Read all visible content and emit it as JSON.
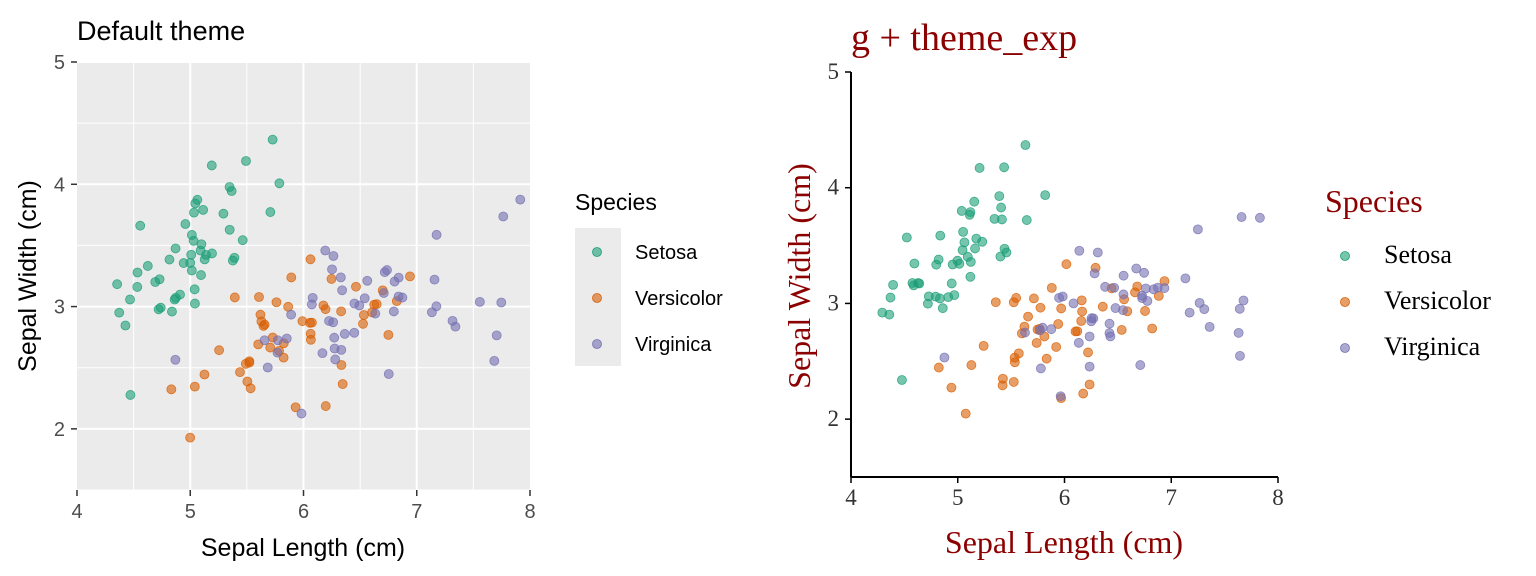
{
  "chart_data": [
    {
      "type": "scatter",
      "title": "Default theme",
      "xlabel": "Sepal Length (cm)",
      "ylabel": "Sepal Width (cm)",
      "xlim": [
        4,
        8
      ],
      "ylim": [
        1.5,
        5
      ],
      "xticks": [
        4,
        5,
        6,
        7,
        8
      ],
      "yticks": [
        2,
        3,
        4,
        5
      ],
      "grid": true,
      "legend_position": "right",
      "legend_title": "Species",
      "background": "#EBEBEB"
    },
    {
      "type": "scatter",
      "title": "g + theme_exp",
      "xlabel": "Sepal Length (cm)",
      "ylabel": "Sepal Width (cm)",
      "xlim": [
        4,
        8
      ],
      "ylim": [
        1.5,
        5
      ],
      "xticks": [
        4,
        5,
        6,
        7,
        8
      ],
      "yticks": [
        2,
        3,
        4,
        5
      ],
      "grid": false,
      "legend_position": "right",
      "legend_title": "Species",
      "text_color": "#8B0000"
    }
  ],
  "series": [
    {
      "name": "Setosa",
      "color": "#1B9E77",
      "points": [
        [
          5.1,
          3.5
        ],
        [
          4.9,
          3.0
        ],
        [
          4.7,
          3.2
        ],
        [
          4.6,
          3.1
        ],
        [
          5.0,
          3.6
        ],
        [
          5.4,
          3.9
        ],
        [
          4.6,
          3.4
        ],
        [
          5.0,
          3.4
        ],
        [
          4.4,
          2.9
        ],
        [
          4.9,
          3.1
        ],
        [
          5.4,
          3.7
        ],
        [
          4.8,
          3.4
        ],
        [
          4.8,
          3.0
        ],
        [
          4.3,
          3.0
        ],
        [
          5.8,
          4.0
        ],
        [
          5.7,
          4.4
        ],
        [
          5.4,
          3.9
        ],
        [
          5.1,
          3.5
        ],
        [
          5.7,
          3.8
        ],
        [
          5.1,
          3.8
        ],
        [
          5.4,
          3.4
        ],
        [
          5.1,
          3.7
        ],
        [
          4.6,
          3.6
        ],
        [
          5.1,
          3.3
        ],
        [
          4.8,
          3.4
        ],
        [
          5.0,
          3.0
        ],
        [
          5.0,
          3.4
        ],
        [
          5.2,
          3.5
        ],
        [
          5.2,
          3.4
        ],
        [
          4.7,
          3.2
        ],
        [
          4.8,
          3.1
        ],
        [
          5.4,
          3.4
        ],
        [
          5.2,
          4.1
        ],
        [
          5.5,
          4.2
        ],
        [
          4.9,
          3.1
        ],
        [
          5.0,
          3.2
        ],
        [
          5.5,
          3.5
        ],
        [
          4.9,
          3.6
        ],
        [
          4.4,
          3.0
        ],
        [
          5.1,
          3.4
        ],
        [
          5.0,
          3.5
        ],
        [
          4.5,
          2.3
        ],
        [
          4.4,
          3.2
        ],
        [
          5.0,
          3.5
        ],
        [
          5.1,
          3.8
        ],
        [
          4.8,
          3.0
        ],
        [
          5.1,
          3.8
        ],
        [
          4.6,
          3.2
        ],
        [
          5.3,
          3.7
        ],
        [
          5.0,
          3.3
        ]
      ]
    },
    {
      "name": "Versicolor",
      "color": "#D95F02",
      "points": [
        [
          7.0,
          3.2
        ],
        [
          6.4,
          3.2
        ],
        [
          6.9,
          3.1
        ],
        [
          5.5,
          2.3
        ],
        [
          6.5,
          2.8
        ],
        [
          5.7,
          2.8
        ],
        [
          6.3,
          3.3
        ],
        [
          4.9,
          2.4
        ],
        [
          6.6,
          2.9
        ],
        [
          5.2,
          2.7
        ],
        [
          5.0,
          2.0
        ],
        [
          5.9,
          3.0
        ],
        [
          6.0,
          2.2
        ],
        [
          6.1,
          2.9
        ],
        [
          5.6,
          2.9
        ],
        [
          6.7,
          3.1
        ],
        [
          5.6,
          3.0
        ],
        [
          5.8,
          2.7
        ],
        [
          6.2,
          2.2
        ],
        [
          5.6,
          2.5
        ],
        [
          5.9,
          3.2
        ],
        [
          6.1,
          2.8
        ],
        [
          6.3,
          2.5
        ],
        [
          6.1,
          2.8
        ],
        [
          6.4,
          2.9
        ],
        [
          6.6,
          3.0
        ],
        [
          6.8,
          2.8
        ],
        [
          6.7,
          3.0
        ],
        [
          6.0,
          2.9
        ],
        [
          5.7,
          2.6
        ],
        [
          5.5,
          2.4
        ],
        [
          5.5,
          2.4
        ],
        [
          5.8,
          2.7
        ],
        [
          6.0,
          2.7
        ],
        [
          5.4,
          3.0
        ],
        [
          6.0,
          3.4
        ],
        [
          6.7,
          3.1
        ],
        [
          6.3,
          2.3
        ],
        [
          5.6,
          3.0
        ],
        [
          5.5,
          2.5
        ],
        [
          5.5,
          2.6
        ],
        [
          6.1,
          3.0
        ],
        [
          5.8,
          2.6
        ],
        [
          5.0,
          2.3
        ],
        [
          5.6,
          2.7
        ],
        [
          5.7,
          3.0
        ],
        [
          5.7,
          2.9
        ],
        [
          6.2,
          2.9
        ],
        [
          5.1,
          2.5
        ],
        [
          5.7,
          2.8
        ]
      ]
    },
    {
      "name": "Virginica",
      "color": "#7570B3",
      "points": [
        [
          6.3,
          3.3
        ],
        [
          5.8,
          2.7
        ],
        [
          7.1,
          3.0
        ],
        [
          6.3,
          2.9
        ],
        [
          6.5,
          3.0
        ],
        [
          7.6,
          3.0
        ],
        [
          4.9,
          2.5
        ],
        [
          7.3,
          2.9
        ],
        [
          6.7,
          2.5
        ],
        [
          7.2,
          3.6
        ],
        [
          6.5,
          3.2
        ],
        [
          6.4,
          2.7
        ],
        [
          6.8,
          3.0
        ],
        [
          5.7,
          2.5
        ],
        [
          5.8,
          2.8
        ],
        [
          6.4,
          3.2
        ],
        [
          6.5,
          3.0
        ],
        [
          7.7,
          3.8
        ],
        [
          7.7,
          2.6
        ],
        [
          6.0,
          2.2
        ],
        [
          6.9,
          3.2
        ],
        [
          5.6,
          2.8
        ],
        [
          7.7,
          2.8
        ],
        [
          6.3,
          2.7
        ],
        [
          6.7,
          3.3
        ],
        [
          7.2,
          3.2
        ],
        [
          6.2,
          2.8
        ],
        [
          6.1,
          3.0
        ],
        [
          6.4,
          2.8
        ],
        [
          7.2,
          3.0
        ],
        [
          7.4,
          2.8
        ],
        [
          7.9,
          3.8
        ],
        [
          6.4,
          2.8
        ],
        [
          6.3,
          2.8
        ],
        [
          6.1,
          2.6
        ],
        [
          7.7,
          3.0
        ],
        [
          6.3,
          3.4
        ],
        [
          6.4,
          3.1
        ],
        [
          6.0,
          3.0
        ],
        [
          6.9,
          3.1
        ],
        [
          6.7,
          3.1
        ],
        [
          6.9,
          3.1
        ],
        [
          5.8,
          2.7
        ],
        [
          6.8,
          3.2
        ],
        [
          6.7,
          3.3
        ],
        [
          6.7,
          3.0
        ],
        [
          6.3,
          2.5
        ],
        [
          6.5,
          3.0
        ],
        [
          6.2,
          3.4
        ],
        [
          5.9,
          3.0
        ]
      ]
    }
  ]
}
